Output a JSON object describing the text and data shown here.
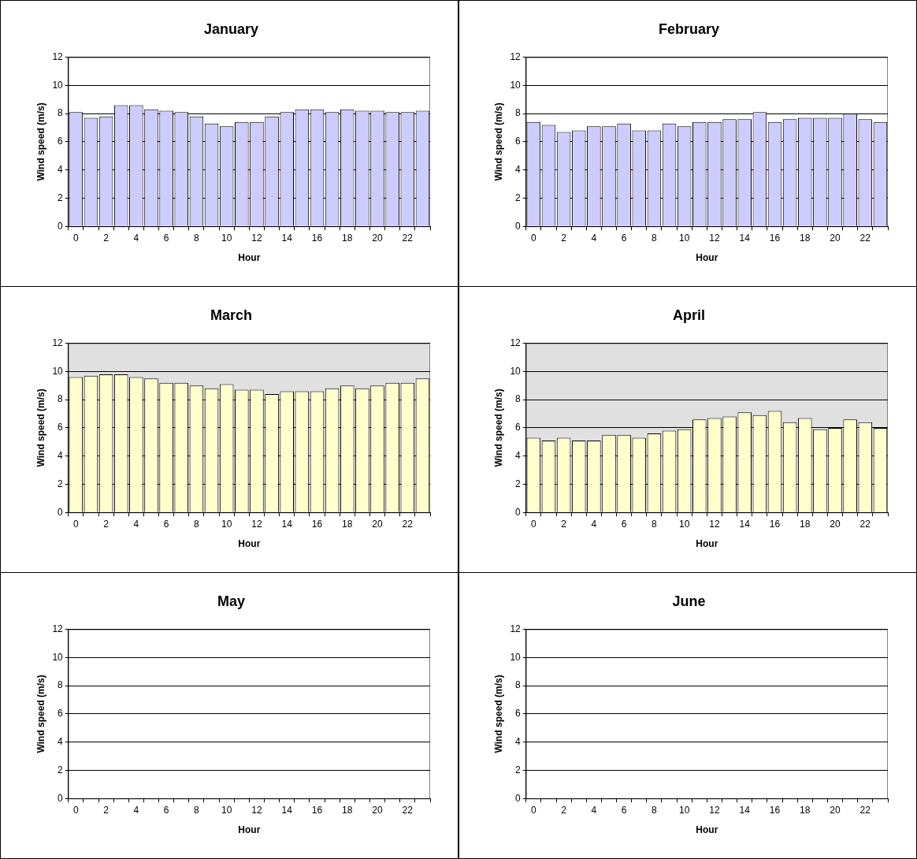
{
  "chart_data": [
    {
      "type": "bar",
      "title": "January",
      "xlabel": "Hour",
      "ylabel": "Wind speed (m/s)",
      "categories": [
        "0",
        null,
        "2",
        null,
        "4",
        null,
        "6",
        null,
        "8",
        null,
        "10",
        null,
        "12",
        null,
        "14",
        null,
        "16",
        null,
        "18",
        null,
        "20",
        null,
        "22",
        null
      ],
      "ylim": [
        0,
        12
      ],
      "yticks": [
        0,
        2,
        4,
        6,
        8,
        10,
        12
      ],
      "grid": "y",
      "legend": false,
      "series": [
        {
          "color": "#ccccff",
          "values": [
            8.1,
            7.7,
            7.8,
            8.6,
            8.6,
            8.3,
            8.2,
            8.1,
            7.8,
            7.3,
            7.1,
            7.4,
            7.4,
            7.8,
            8.1,
            8.3,
            8.3,
            8.1,
            8.3,
            8.2,
            8.2,
            8.1,
            8.1,
            8.2
          ]
        }
      ]
    },
    {
      "type": "bar",
      "title": "February",
      "xlabel": "Hour",
      "ylabel": "Wind speed (m/s)",
      "categories": [
        "0",
        null,
        "2",
        null,
        "4",
        null,
        "6",
        null,
        "8",
        null,
        "10",
        null,
        "12",
        null,
        "14",
        null,
        "16",
        null,
        "18",
        null,
        "20",
        null,
        "22",
        null
      ],
      "ylim": [
        0,
        12
      ],
      "yticks": [
        0,
        2,
        4,
        6,
        8,
        10,
        12
      ],
      "grid": "y",
      "legend": false,
      "series": [
        {
          "color": "#ccccff",
          "values": [
            7.4,
            7.2,
            6.7,
            6.8,
            7.1,
            7.1,
            7.3,
            6.8,
            6.8,
            7.3,
            7.1,
            7.4,
            7.4,
            7.6,
            7.6,
            8.1,
            7.4,
            7.6,
            7.7,
            7.7,
            7.7,
            8.0,
            7.6,
            7.4
          ]
        }
      ]
    },
    {
      "type": "bar",
      "title": "March",
      "xlabel": "Hour",
      "ylabel": "Wind speed (m/s)",
      "categories": [
        "0",
        null,
        "2",
        null,
        "4",
        null,
        "6",
        null,
        "8",
        null,
        "10",
        null,
        "12",
        null,
        "14",
        null,
        "16",
        null,
        "18",
        null,
        "20",
        null,
        "22",
        null
      ],
      "ylim": [
        0,
        12
      ],
      "yticks": [
        0,
        2,
        4,
        6,
        8,
        10,
        12
      ],
      "grid": "y",
      "legend": false,
      "series": [
        {
          "color": "#ffffcc",
          "values": [
            9.6,
            9.7,
            9.8,
            9.8,
            9.6,
            9.5,
            9.2,
            9.2,
            9.0,
            8.8,
            9.1,
            8.7,
            8.7,
            8.4,
            8.6,
            8.6,
            8.6,
            8.8,
            9.0,
            8.8,
            9.0,
            9.2,
            9.2,
            9.5
          ]
        }
      ]
    },
    {
      "type": "bar",
      "title": "April",
      "xlabel": "Hour",
      "ylabel": "Wind speed (m/s)",
      "categories": [
        "0",
        null,
        "2",
        null,
        "4",
        null,
        "6",
        null,
        "8",
        null,
        "10",
        null,
        "12",
        null,
        "14",
        null,
        "16",
        null,
        "18",
        null,
        "20",
        null,
        "22",
        null
      ],
      "ylim": [
        0,
        12
      ],
      "yticks": [
        0,
        2,
        4,
        6,
        8,
        10,
        12
      ],
      "grid": "y",
      "legend": false,
      "series": [
        {
          "color": "#ffffcc",
          "values": [
            5.3,
            5.1,
            5.3,
            5.1,
            5.1,
            5.5,
            5.5,
            5.3,
            5.6,
            5.8,
            5.9,
            6.6,
            6.7,
            6.8,
            7.1,
            6.9,
            7.2,
            6.4,
            6.7,
            5.9,
            6.0,
            6.6,
            6.4,
            6.0
          ]
        }
      ]
    },
    {
      "type": "bar",
      "title": "May",
      "xlabel": "Hour",
      "ylabel": "Wind speed (m/s)",
      "categories": [
        "0",
        null,
        "2",
        null,
        "4",
        null,
        "6",
        null,
        "8",
        null,
        "10",
        null,
        "12",
        null,
        "14",
        null,
        "16",
        null,
        "18",
        null,
        "20",
        null,
        "22",
        null
      ],
      "ylim": [
        0,
        12
      ],
      "yticks": [
        0,
        2,
        4,
        6,
        8,
        10,
        12
      ],
      "grid": "y",
      "legend": false,
      "series": [
        {
          "values": [
            null,
            null,
            null,
            null,
            null,
            null,
            null,
            null,
            null,
            null,
            null,
            null,
            null,
            null,
            null,
            null,
            null,
            null,
            null,
            null,
            null,
            null,
            null,
            null
          ]
        }
      ]
    },
    {
      "type": "bar",
      "title": "June",
      "xlabel": "Hour",
      "ylabel": "Wind speed (m/s)",
      "categories": [
        "0",
        null,
        "2",
        null,
        "4",
        null,
        "6",
        null,
        "8",
        null,
        "10",
        null,
        "12",
        null,
        "14",
        null,
        "16",
        null,
        "18",
        null,
        "20",
        null,
        "22",
        null
      ],
      "ylim": [
        0,
        12
      ],
      "yticks": [
        0,
        2,
        4,
        6,
        8,
        10,
        12
      ],
      "grid": "y",
      "legend": false,
      "series": [
        {
          "values": [
            null,
            null,
            null,
            null,
            null,
            null,
            null,
            null,
            null,
            null,
            null,
            null,
            null,
            null,
            null,
            null,
            null,
            null,
            null,
            null,
            null,
            null,
            null,
            null
          ]
        }
      ]
    }
  ]
}
